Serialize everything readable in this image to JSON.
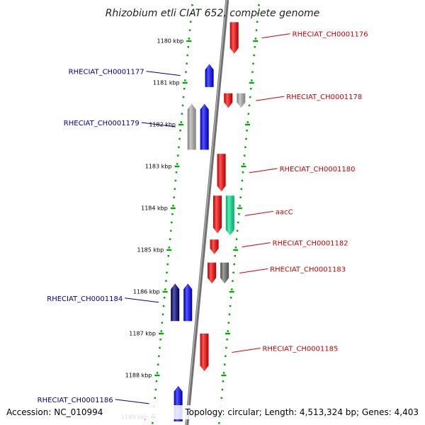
{
  "title": "Rhizobium etli CIAT 652, complete genome",
  "accession": "Accession: NC_010994",
  "topology": "Topology: circular; Length: 4,513,324 bp; Genes: 4,403",
  "colors": {
    "forward": "#ff0000",
    "reverse": "#0000ff",
    "reverse_dark": "#000080",
    "grey": "#b0b0b0",
    "dark_grey": "#6e6e6e",
    "rrna": "#00e890",
    "axis": "#707070",
    "ruler": "#00aa00",
    "label_fwd": "#cc0000",
    "label_rev": "#000099"
  },
  "ticks": [
    {
      "label": "1180 kbp",
      "kbp": 1180
    },
    {
      "label": "1181 kbp",
      "kbp": 1181
    },
    {
      "label": "1182 kbp",
      "kbp": 1182
    },
    {
      "label": "1183 kbp",
      "kbp": 1183
    },
    {
      "label": "1184 kbp",
      "kbp": 1184
    },
    {
      "label": "1185 kbp",
      "kbp": 1185
    },
    {
      "label": "1186 kbp",
      "kbp": 1186
    },
    {
      "label": "1187 kbp",
      "kbp": 1187
    },
    {
      "label": "1188 kbp",
      "kbp": 1188
    },
    {
      "label": "1189 kbp",
      "kbp": 1189
    }
  ],
  "genes": [
    {
      "name": "RHECIAT_CH0001176",
      "strand": "+",
      "start": 1179.55,
      "end": 1180.3,
      "color": "forward",
      "label": "RHECIAT_CH0001176",
      "lane": 0
    },
    {
      "name": "RHECIAT_CH0001177",
      "strand": "-",
      "start": 1180.55,
      "end": 1181.1,
      "color": "reverse",
      "label": "RHECIAT_CH0001177",
      "lane": 0
    },
    {
      "name": "RHECIAT_CH0001178a",
      "strand": "+",
      "start": 1181.25,
      "end": 1181.6,
      "color": "forward",
      "label": "",
      "lane": 0
    },
    {
      "name": "RHECIAT_CH0001178",
      "strand": "+",
      "start": 1181.25,
      "end": 1181.6,
      "color": "grey",
      "label": "RHECIAT_CH0001178",
      "lane": 1
    },
    {
      "name": "RHECIAT_CH0001179a",
      "strand": "-",
      "start": 1181.5,
      "end": 1182.6,
      "color": "grey",
      "label": "",
      "lane": 1
    },
    {
      "name": "RHECIAT_CH0001179",
      "strand": "-",
      "start": 1181.5,
      "end": 1182.6,
      "color": "reverse",
      "label": "RHECIAT_CH0001179",
      "lane": 0
    },
    {
      "name": "RHECIAT_CH0001180",
      "strand": "+",
      "start": 1182.7,
      "end": 1183.6,
      "color": "forward",
      "label": "RHECIAT_CH0001180",
      "lane": 0
    },
    {
      "name": "RHECIAT_CH0001181",
      "strand": "+",
      "start": 1183.7,
      "end": 1184.6,
      "color": "forward",
      "label": "",
      "lane": 0
    },
    {
      "name": "aacC",
      "strand": "+",
      "start": 1183.7,
      "end": 1184.65,
      "color": "rrna",
      "label": "aacC",
      "lane": 1
    },
    {
      "name": "RHECIAT_CH0001182",
      "strand": "+",
      "start": 1184.75,
      "end": 1185.1,
      "color": "forward",
      "label": "RHECIAT_CH0001182",
      "lane": 0
    },
    {
      "name": "RHECIAT_CH0001183a",
      "strand": "+",
      "start": 1185.3,
      "end": 1185.8,
      "color": "forward",
      "label": "",
      "lane": 0
    },
    {
      "name": "RHECIAT_CH0001183",
      "strand": "+",
      "start": 1185.3,
      "end": 1185.8,
      "color": "dark_grey",
      "label": "RHECIAT_CH0001183",
      "lane": 1
    },
    {
      "name": "RHECIAT_CH0001184",
      "strand": "-",
      "start": 1185.8,
      "end": 1186.7,
      "color": "reverse",
      "label": "RHECIAT_CH0001184",
      "lane": 0
    },
    {
      "name": "RHECIAT_CH0001184b",
      "strand": "-",
      "start": 1185.8,
      "end": 1186.7,
      "color": "reverse_dark",
      "label": "",
      "lane": 1
    },
    {
      "name": "RHECIAT_CH0001185",
      "strand": "+",
      "start": 1187.0,
      "end": 1187.9,
      "color": "forward",
      "label": "RHECIAT_CH0001185",
      "lane": 0
    },
    {
      "name": "RHECIAT_CH0001186",
      "strand": "-",
      "start": 1188.25,
      "end": 1189.1,
      "color": "reverse",
      "label": "RHECIAT_CH0001186",
      "lane": 0
    }
  ]
}
